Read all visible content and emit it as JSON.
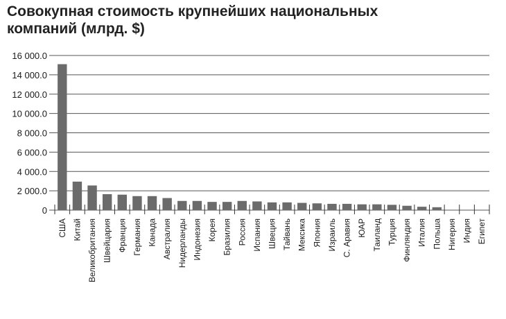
{
  "chart_data": {
    "type": "bar",
    "title_lines": [
      "Совокупная стоимость крупнейших национальных",
      "компаний (млрд. $)"
    ],
    "categories": [
      "США",
      "Китай",
      "Великобритания",
      "Швейцария",
      "Франция",
      "Германия",
      "Канада",
      "Австралия",
      "Нидерланды",
      "Индонезия",
      "Корея",
      "Бразилия",
      "Россия",
      "Испания",
      "Швеция",
      "Тайвань",
      "Мексика",
      "Япония",
      "Израиль",
      "С. Аравия",
      "ЮАР",
      "Таиланд",
      "Турция",
      "Финляндия",
      "Италия",
      "Польша",
      "Нигерия",
      "Индия",
      "Египет"
    ],
    "values": [
      15100,
      2950,
      2550,
      1650,
      1600,
      1450,
      1450,
      1250,
      950,
      950,
      850,
      850,
      950,
      900,
      800,
      800,
      750,
      700,
      650,
      650,
      600,
      600,
      550,
      450,
      350,
      300,
      0,
      0,
      0
    ],
    "ylim": [
      0,
      16000
    ],
    "yticks": [
      0,
      2000,
      4000,
      6000,
      8000,
      10000,
      12000,
      14000,
      16000
    ],
    "ytick_labels": [
      "0",
      "2 000.0",
      "4 000.0",
      "6 000.0",
      "8 000.0",
      "10 000.0",
      "12 000.0",
      "14 000.0",
      "16 000.0"
    ],
    "grid": true,
    "colors": {
      "bar": "#6b6b6b",
      "grid": "#555555",
      "axis": "#333333"
    }
  }
}
